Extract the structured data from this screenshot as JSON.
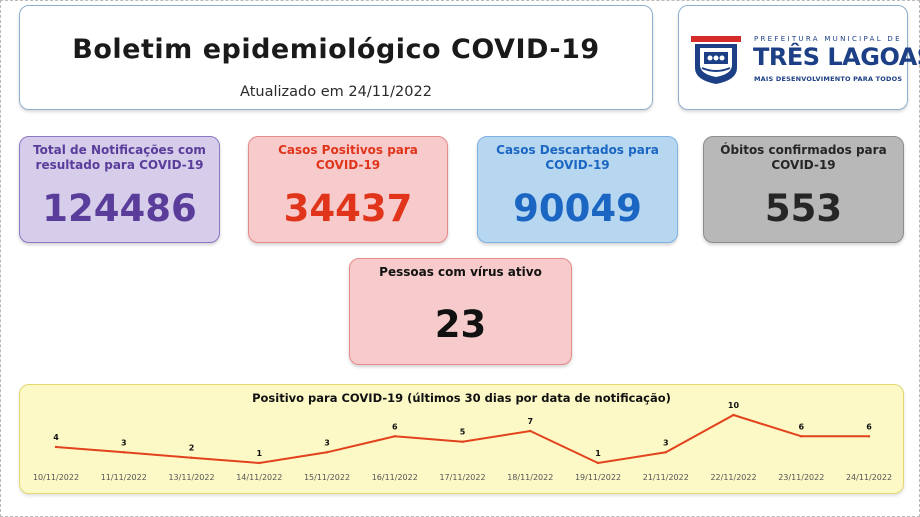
{
  "header": {
    "title": "Boletim epidemiológico COVID-19",
    "updated": "Atualizado em 24/11/2022"
  },
  "logo": {
    "small": "PREFEITURA MUNICIPAL DE",
    "name": "TRÊS LAGOAS",
    "tagline": "MAIS DESENVOLVIMENTO PARA TODOS"
  },
  "stats": {
    "total": {
      "label": "Total de Notificações com resultado para COVID-19",
      "value": "124486"
    },
    "positive": {
      "label": "Casos Positivos para COVID-19",
      "value": "34437"
    },
    "discarded": {
      "label": "Casos Descartados para COVID-19",
      "value": "90049"
    },
    "deaths": {
      "label": "Óbitos confirmados para COVID-19",
      "value": "553"
    },
    "active": {
      "label": "Pessoas com vírus ativo",
      "value": "23"
    }
  },
  "colors": {
    "line": "#e2421c",
    "purple": "#5a3c9a",
    "red": "#e0341b",
    "blue": "#1a66c2",
    "gray": "#262626"
  },
  "chart_data": {
    "type": "line",
    "title": "Positivo para COVID-19 (últimos 30 dias por data de notificação)",
    "categories": [
      "10/11/2022",
      "11/11/2022",
      "13/11/2022",
      "14/11/2022",
      "15/11/2022",
      "16/11/2022",
      "17/11/2022",
      "18/11/2022",
      "19/11/2022",
      "21/11/2022",
      "22/11/2022",
      "23/11/2022",
      "24/11/2022"
    ],
    "values": [
      4,
      3,
      2,
      1,
      3,
      6,
      5,
      7,
      1,
      3,
      10,
      6,
      6
    ],
    "grid": false,
    "legend": "none"
  }
}
